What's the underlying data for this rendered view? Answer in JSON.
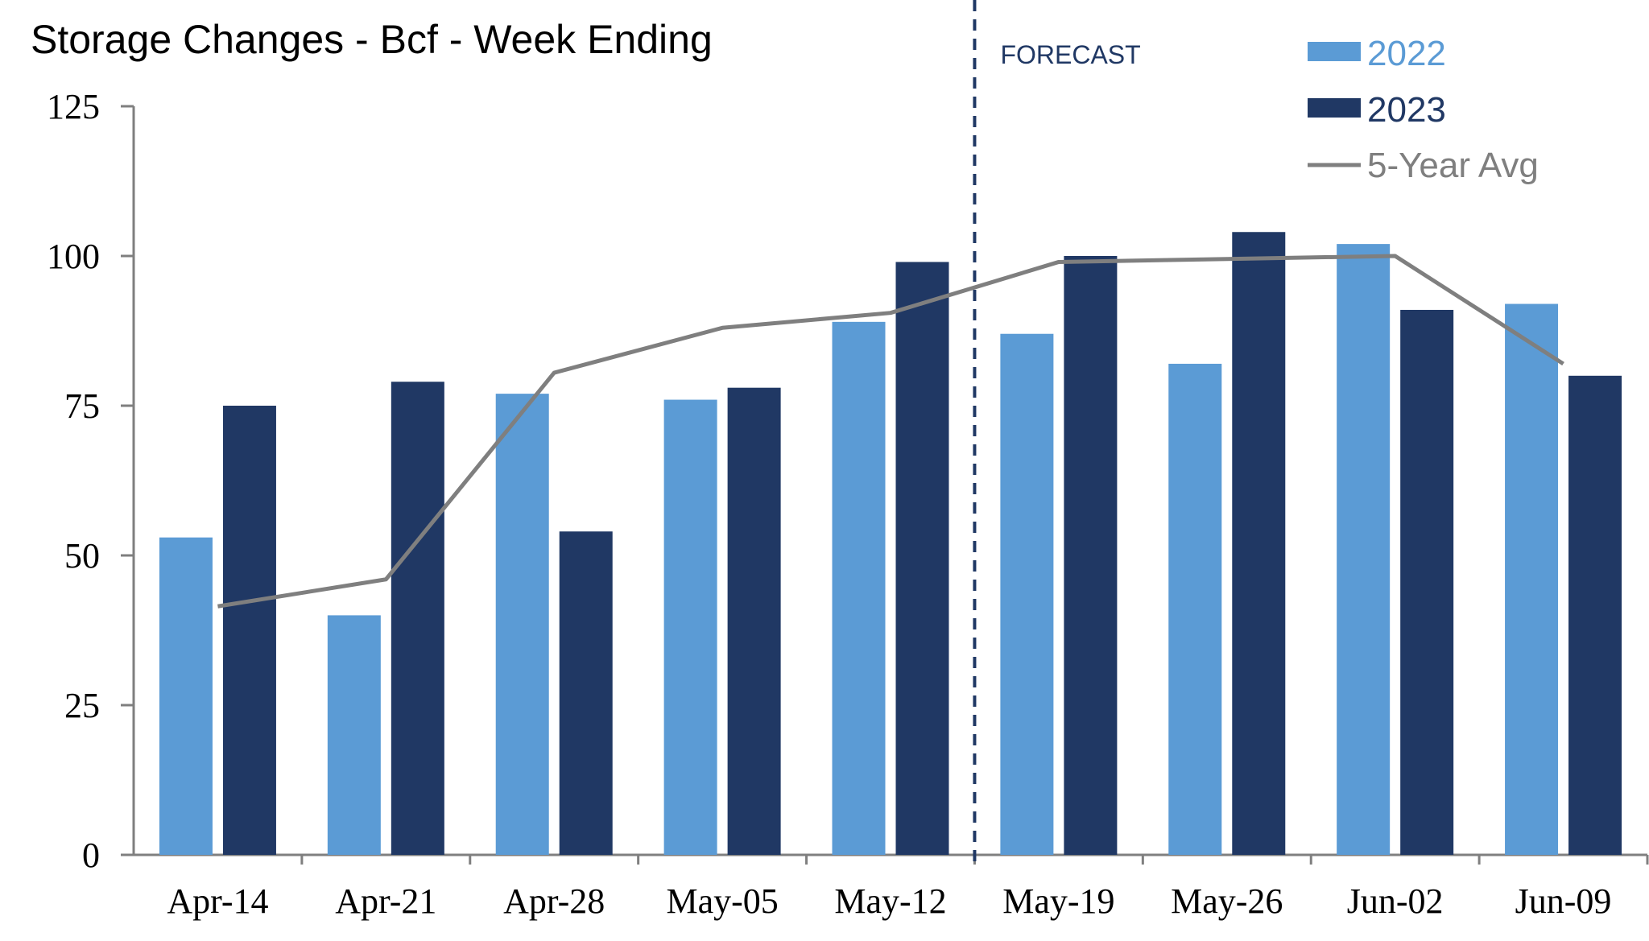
{
  "chart_data": {
    "type": "bar",
    "title": "Storage Changes - Bcf - Week Ending",
    "categories": [
      "Apr-14",
      "Apr-21",
      "Apr-28",
      "May-05",
      "May-12",
      "May-19",
      "May-26",
      "Jun-02",
      "Jun-09"
    ],
    "series": [
      {
        "name": "2022",
        "type": "bar",
        "color": "#5b9bd5",
        "values": [
          53,
          40,
          77,
          76,
          89,
          87,
          82,
          102,
          92
        ]
      },
      {
        "name": "2023",
        "type": "bar",
        "color": "#203864",
        "values": [
          75,
          79,
          54,
          78,
          99,
          100,
          104,
          91,
          80
        ]
      },
      {
        "name": "5-Year Avg",
        "type": "line",
        "color": "#7f7f7f",
        "values": [
          41.5,
          46,
          80.5,
          88,
          90.5,
          99,
          99.5,
          100,
          82
        ]
      }
    ],
    "ylim": [
      0,
      125
    ],
    "yticks": [
      0,
      25,
      50,
      75,
      100,
      125
    ],
    "xlabel": "",
    "ylabel": "",
    "grid": false,
    "legend_position": "top-right",
    "forecast_label": "FORECAST",
    "forecast_divider_color": "#203864",
    "forecast_divider_after_category": "May-12",
    "axis_color": "#7f7f7f"
  }
}
